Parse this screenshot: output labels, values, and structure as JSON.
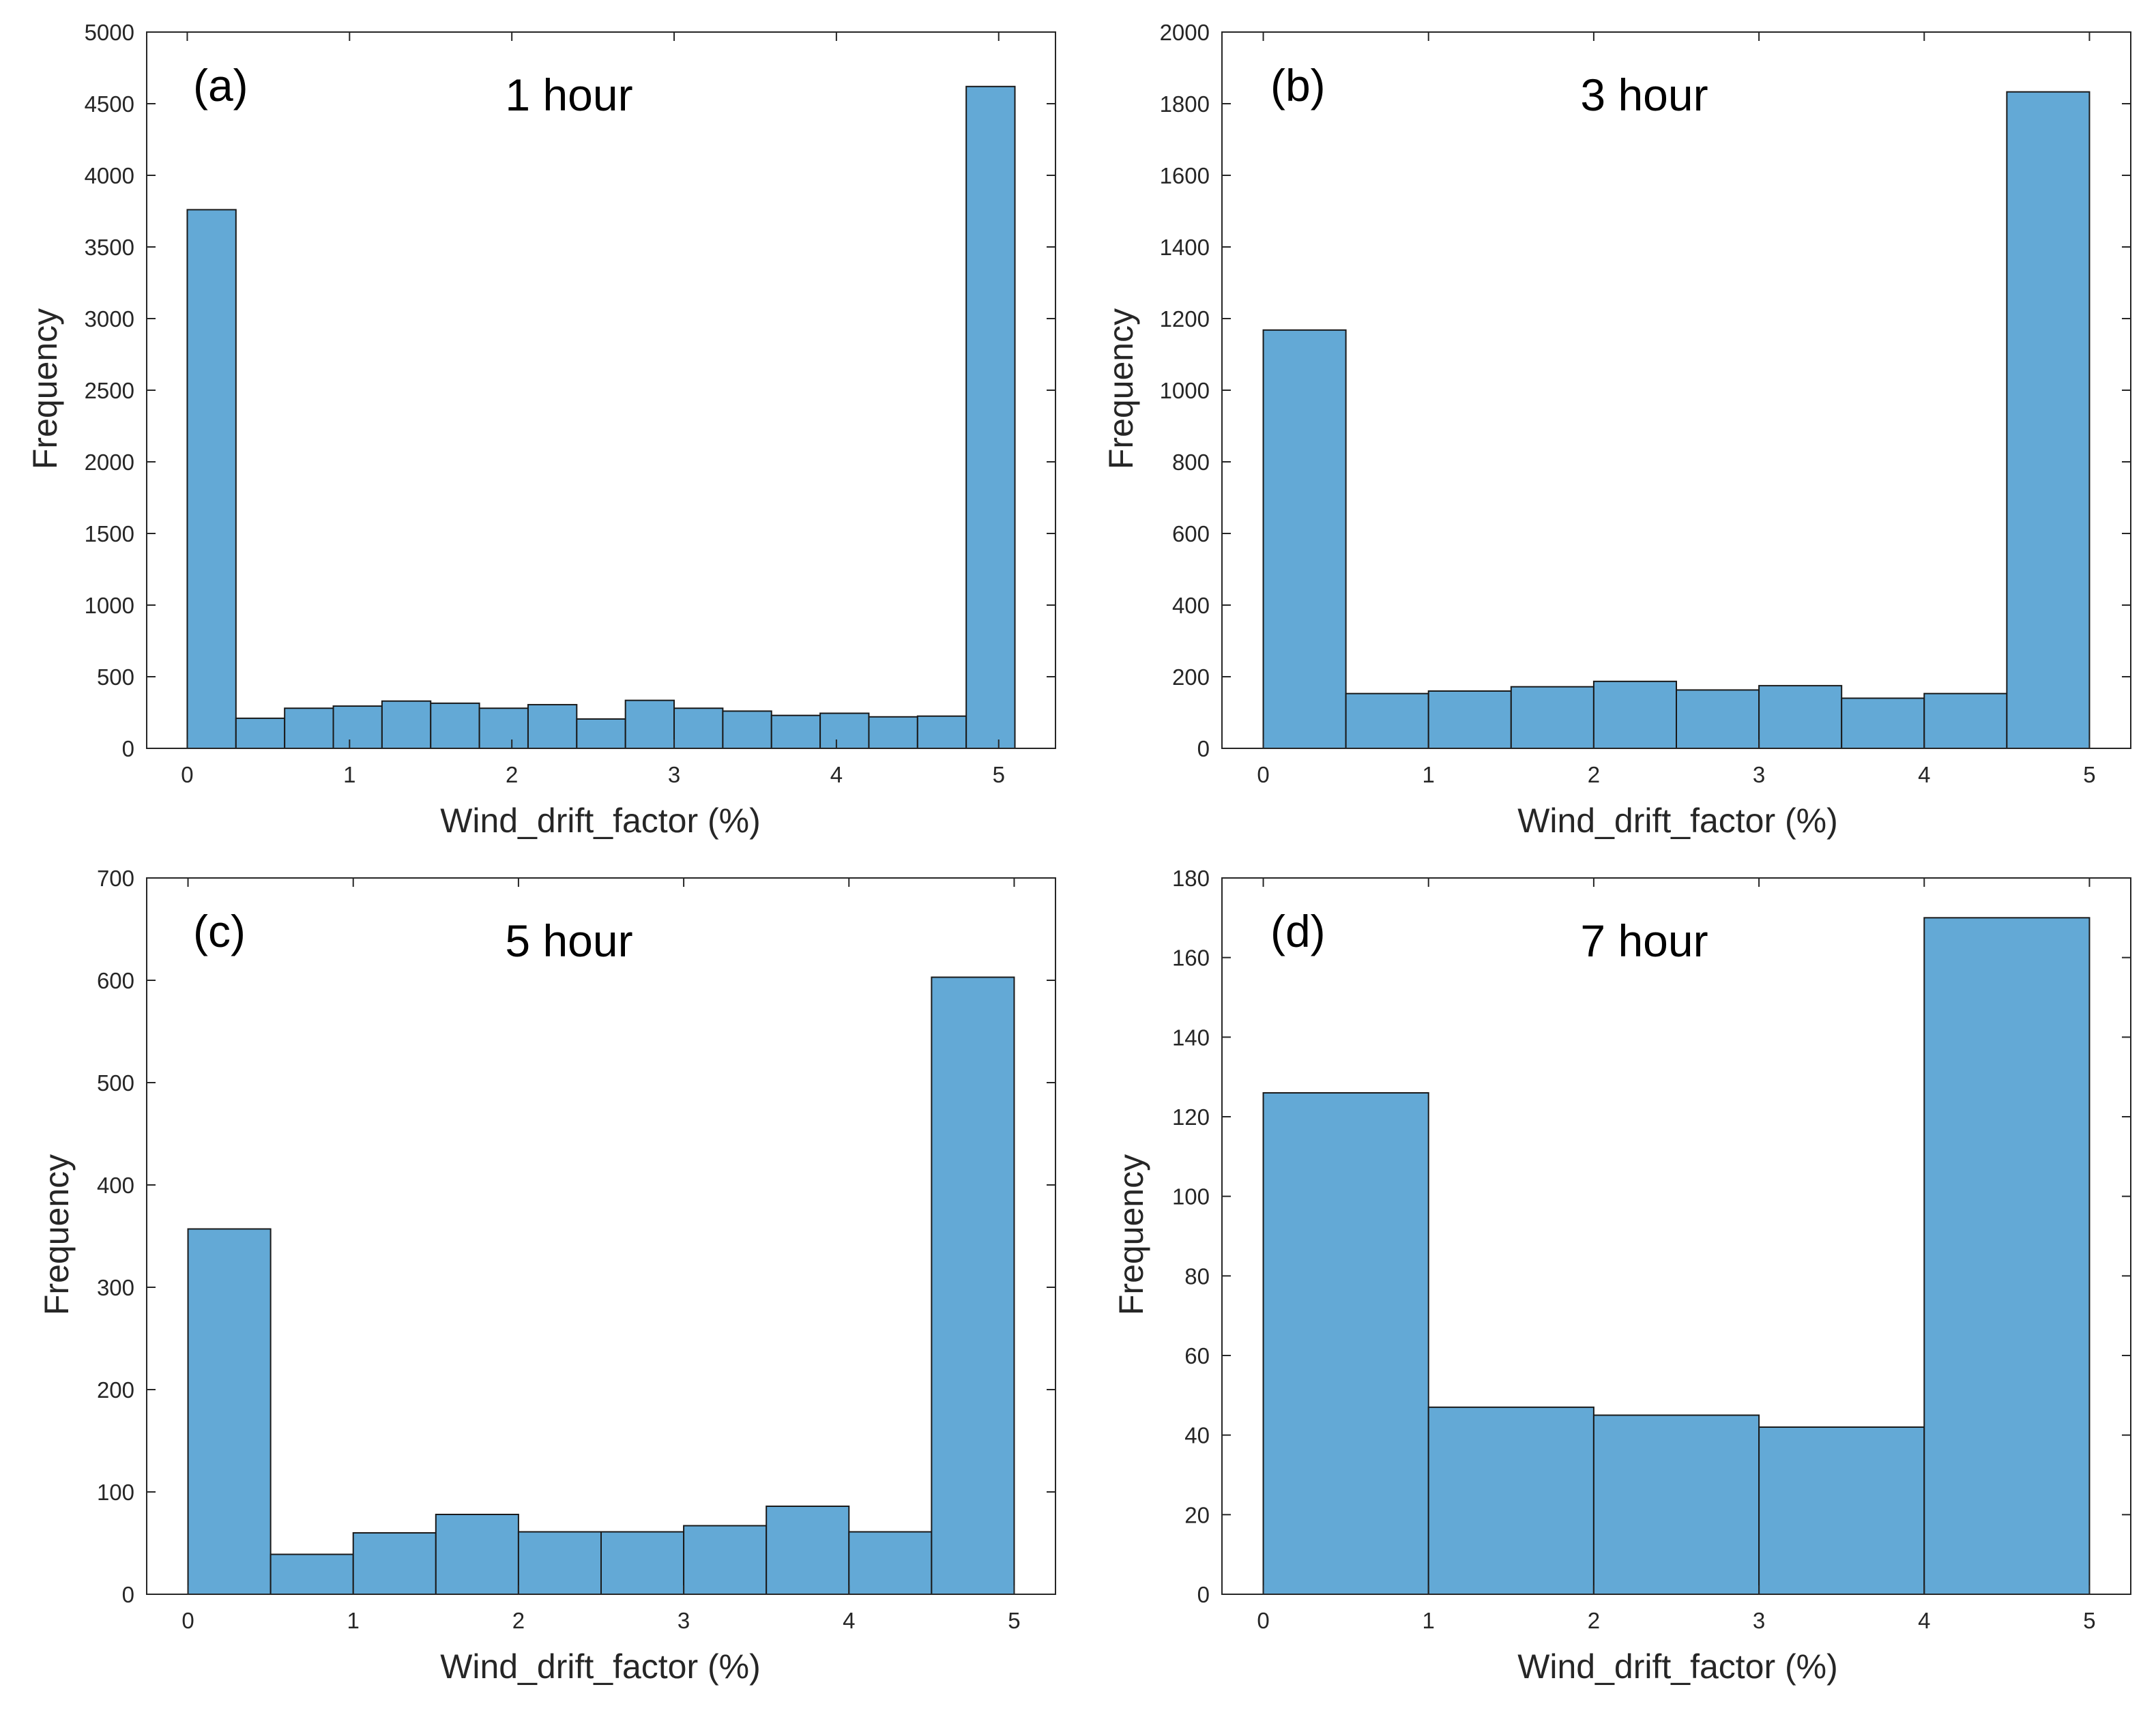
{
  "figure": {
    "colors": {
      "bar_fill": "#63a9d6",
      "bar_edge": "#1a1a1a",
      "axis": "#262626"
    }
  },
  "chart_data": [
    {
      "type": "bar",
      "panel_label": "(a)",
      "title": "1 hour",
      "xlabel": "Wind_drift_factor (%)",
      "ylabel": "Frequency",
      "xlim": [
        -0.25,
        5.35
      ],
      "ylim": [
        0,
        5000
      ],
      "xticks": [
        0,
        1,
        2,
        3,
        4,
        5
      ],
      "yticks": [
        0,
        500,
        1000,
        1500,
        2000,
        2500,
        3000,
        3500,
        4000,
        4500,
        5000
      ],
      "bin_edges": [
        0,
        0.3,
        0.6,
        0.9,
        1.2,
        1.5,
        1.8,
        2.1,
        2.4,
        2.7,
        3.0,
        3.3,
        3.6,
        3.9,
        4.2,
        4.5,
        4.8,
        5.1
      ],
      "values": [
        3760,
        210,
        280,
        295,
        330,
        315,
        280,
        305,
        205,
        335,
        280,
        260,
        230,
        245,
        220,
        225,
        4620
      ]
    },
    {
      "type": "bar",
      "panel_label": "(b)",
      "title": "3 hour",
      "xlabel": "Wind_drift_factor (%)",
      "ylabel": "Frequency",
      "xlim": [
        -0.25,
        5.25
      ],
      "ylim": [
        0,
        2000
      ],
      "xticks": [
        0,
        1,
        2,
        3,
        4,
        5
      ],
      "yticks": [
        0,
        200,
        400,
        600,
        800,
        1000,
        1200,
        1400,
        1600,
        1800,
        2000
      ],
      "bin_edges": [
        0,
        0.5,
        1.0,
        1.5,
        2.0,
        2.5,
        3.0,
        3.5,
        4.0,
        4.5,
        5.0
      ],
      "values": [
        1168,
        153,
        160,
        172,
        187,
        163,
        175,
        140,
        153,
        1833
      ]
    },
    {
      "type": "bar",
      "panel_label": "(c)",
      "title": "5 hour",
      "xlabel": "Wind_drift_factor (%)",
      "ylabel": "Frequency",
      "xlim": [
        -0.25,
        5.25
      ],
      "ylim": [
        0,
        700
      ],
      "xticks": [
        0,
        1,
        2,
        3,
        4,
        5
      ],
      "yticks": [
        0,
        100,
        200,
        300,
        400,
        500,
        600,
        700
      ],
      "bin_edges": [
        0,
        0.5,
        1.0,
        1.5,
        2.0,
        2.5,
        3.0,
        3.5,
        4.0,
        4.5,
        5.0
      ],
      "values": [
        357,
        39,
        60,
        78,
        61,
        61,
        67,
        86,
        61,
        603
      ]
    },
    {
      "type": "bar",
      "panel_label": "(d)",
      "title": "7 hour",
      "xlabel": "Wind_drift_factor (%)",
      "ylabel": "Frequency",
      "xlim": [
        -0.25,
        5.25
      ],
      "ylim": [
        0,
        180
      ],
      "xticks": [
        0,
        1,
        2,
        3,
        4,
        5
      ],
      "yticks": [
        0,
        20,
        40,
        60,
        80,
        100,
        120,
        140,
        160,
        180
      ],
      "bin_edges": [
        0,
        1,
        2,
        3,
        4,
        5
      ],
      "values": [
        126,
        47,
        45,
        42,
        170
      ]
    }
  ]
}
